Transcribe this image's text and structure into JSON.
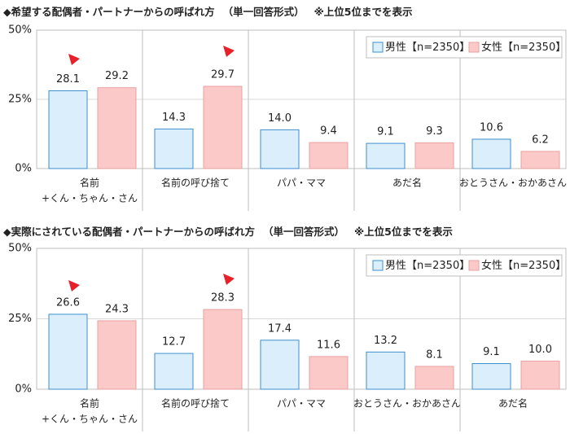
{
  "chart_data": [
    {
      "type": "bar",
      "title": "◆希望する配偶者・パートナーからの呼ばれ方",
      "subtitle": "（単一回答形式）",
      "note": "※上位5位までを表示",
      "categories": [
        [
          "名前",
          "+くん・ちゃん・さん"
        ],
        "名前の呼び捨て",
        "パパ・ママ",
        "あだ名",
        "おとうさん・おかあさん"
      ],
      "series": [
        {
          "name": "男性【n=2350】",
          "color": "#daeefb",
          "edge": "#3f8fcf",
          "values": [
            28.1,
            14.3,
            14.0,
            9.1,
            10.6
          ],
          "value_labels": [
            "28.1",
            "14.3",
            "14.0",
            "9.1",
            "10.6"
          ]
        },
        {
          "name": "女性【n=2350】",
          "color": "#fcc9c9",
          "edge": "#eaa0a0",
          "values": [
            29.2,
            29.7,
            9.4,
            9.3,
            6.2
          ],
          "value_labels": [
            "29.2",
            "29.7",
            "9.4",
            "9.3",
            "6.2"
          ]
        }
      ],
      "ylim": [
        0,
        50
      ],
      "yticks": [
        {
          "value": 0,
          "label": "0%"
        },
        {
          "value": 25,
          "label": "25%"
        },
        {
          "value": 50,
          "label": "50%"
        }
      ],
      "grid": true,
      "legend": "upper right"
    },
    {
      "type": "bar",
      "title": "◆実際にされている配偶者・パートナーからの呼ばれ方",
      "subtitle": "（単一回答形式）",
      "note": "※上位5位までを表示",
      "categories": [
        [
          "名前",
          "+くん・ちゃん・さん"
        ],
        "名前の呼び捨て",
        "パパ・ママ",
        "おとうさん・おかあさん",
        "あだ名"
      ],
      "series": [
        {
          "name": "男性【n=2350】",
          "color": "#daeefb",
          "edge": "#3f8fcf",
          "values": [
            26.6,
            12.7,
            17.4,
            13.2,
            9.1
          ],
          "value_labels": [
            "26.6",
            "12.7",
            "17.4",
            "13.2",
            "9.1"
          ]
        },
        {
          "name": "女性【n=2350】",
          "color": "#fcc9c9",
          "edge": "#eaa0a0",
          "values": [
            24.3,
            28.3,
            11.6,
            8.1,
            10.0
          ],
          "value_labels": [
            "24.3",
            "28.3",
            "11.6",
            "8.1",
            "10.0"
          ]
        }
      ],
      "ylim": [
        0,
        50
      ],
      "yticks": [
        {
          "value": 0,
          "label": "0%"
        },
        {
          "value": 25,
          "label": "25%"
        },
        {
          "value": 50,
          "label": "50%"
        }
      ],
      "grid": true,
      "legend": "upper right"
    }
  ]
}
